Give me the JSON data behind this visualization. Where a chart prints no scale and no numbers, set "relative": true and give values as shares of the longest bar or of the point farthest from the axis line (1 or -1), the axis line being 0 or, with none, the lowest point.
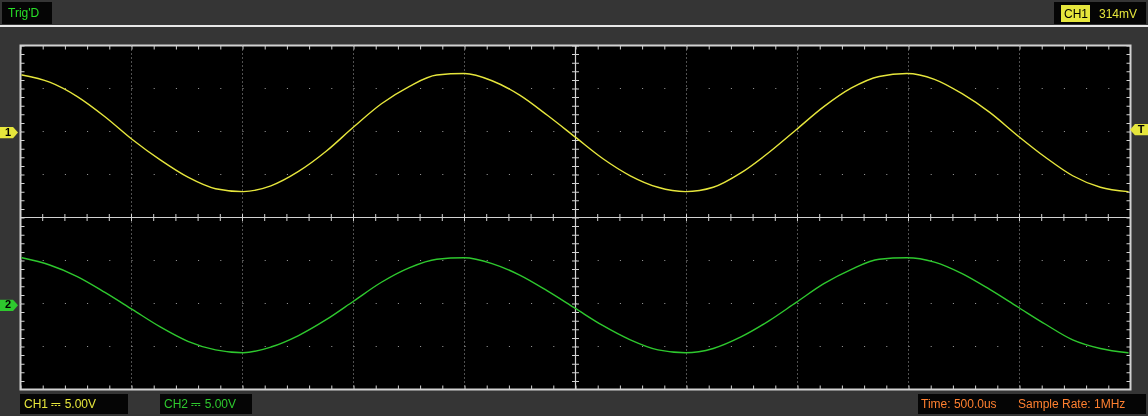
{
  "chart_data": {
    "type": "line",
    "relative": true,
    "grid": true,
    "categories": [
      null,
      null,
      null,
      null,
      null,
      null,
      null,
      null,
      null,
      null,
      null,
      null,
      null,
      null,
      null,
      null,
      null,
      null,
      null,
      null,
      null,
      null,
      null,
      null,
      null,
      null,
      null,
      null,
      null,
      null,
      null,
      null,
      null,
      null,
      null,
      null,
      null,
      null,
      null,
      null,
      null
    ],
    "series": [
      {
        "name": "1",
        "color": "#e6e63c",
        "values": [
          0.99,
          0.94,
          0.84,
          0.7,
          0.54,
          0.4,
          0.28,
          0.2,
          0.18,
          0.22,
          0.32,
          0.46,
          0.63,
          0.79,
          0.91,
          0.99,
          1.0,
          0.95,
          0.85,
          0.71,
          0.56,
          0.41,
          0.29,
          0.21,
          0.18,
          0.21,
          0.31,
          0.45,
          0.61,
          0.77,
          0.9,
          0.98,
          1.0,
          0.96,
          0.86,
          0.73,
          0.57,
          0.42,
          0.29,
          0.21,
          0.18
        ]
      },
      {
        "name": "2",
        "color": "#2ec82e",
        "values": [
          -0.28,
          -0.33,
          -0.41,
          -0.52,
          -0.64,
          -0.76,
          -0.86,
          -0.92,
          -0.94,
          -0.9,
          -0.82,
          -0.71,
          -0.58,
          -0.45,
          -0.35,
          -0.29,
          -0.28,
          -0.32,
          -0.4,
          -0.51,
          -0.63,
          -0.75,
          -0.85,
          -0.92,
          -0.94,
          -0.91,
          -0.83,
          -0.72,
          -0.59,
          -0.46,
          -0.36,
          -0.29,
          -0.28,
          -0.31,
          -0.39,
          -0.5,
          -0.62,
          -0.74,
          -0.85,
          -0.91,
          -0.94
        ]
      }
    ],
    "annotations": [
      "Trig'D",
      "CH1",
      "314mV",
      "CH1 ⎓ 5.00V",
      "CH2 ⎓ 5.00V",
      "Time: 500.0us",
      "Sample Rate: 1MHz",
      {
        "text": "T",
        "y": 0.61
      }
    ]
  }
}
